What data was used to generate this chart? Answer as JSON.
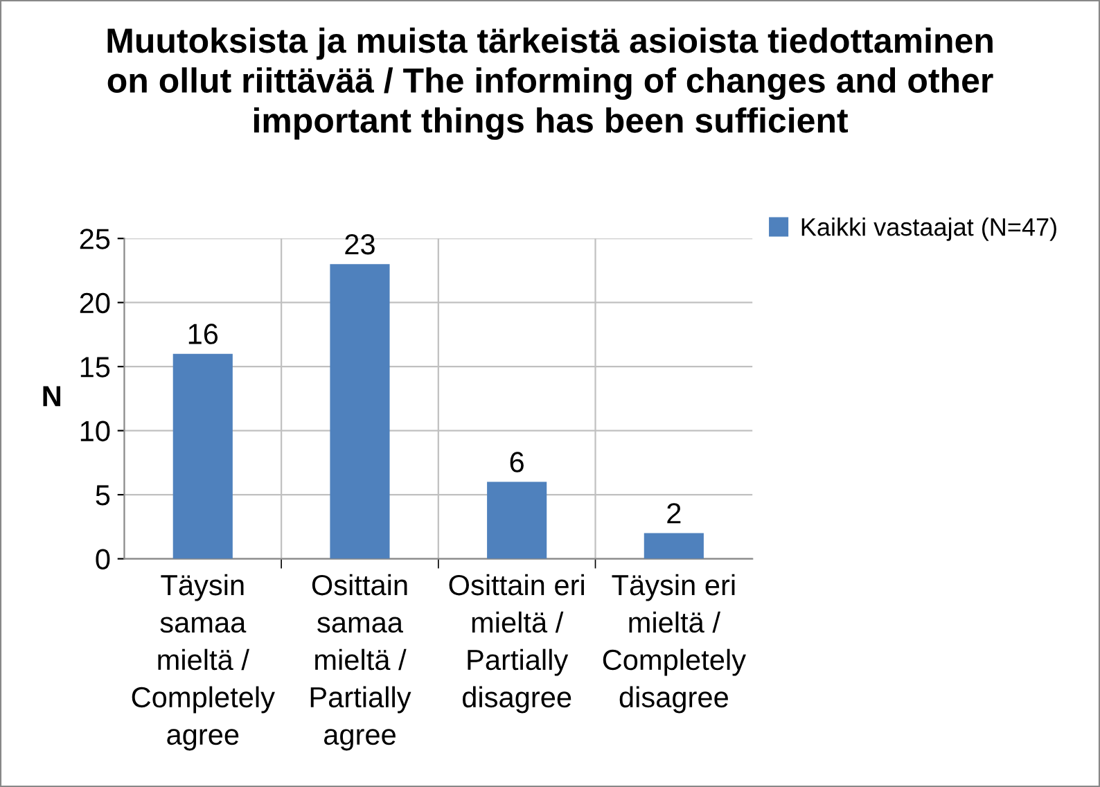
{
  "chart_data": {
    "type": "bar",
    "title": "Muutoksista ja muista tärkeistä asioista tiedottaminen\non ollut riittävää / The informing of changes and other\nimportant things has been sufficient",
    "ylabel": "N",
    "categories": [
      "Täysin\nsamaa\nmieltä /\nCompletely\nagree",
      "Osittain\nsamaa\nmieltä /\nPartially\nagree",
      "Osittain eri\nmieltä /\nPartially\ndisagree",
      "Täysin eri\nmieltä /\nCompletely\ndisagree"
    ],
    "series": [
      {
        "name": "Kaikki vastaajat (N=47)",
        "color": "#4f81bd",
        "values": [
          16,
          23,
          6,
          2
        ]
      }
    ],
    "ylim": [
      0,
      25
    ],
    "yticks": [
      0,
      5,
      10,
      15,
      20,
      25
    ],
    "grid": true,
    "legend": "right",
    "data_labels": true
  }
}
